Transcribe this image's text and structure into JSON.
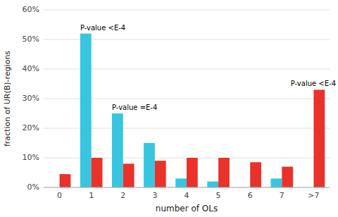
{
  "chart_data": {
    "type": "bar",
    "xlabel": "number of OLs",
    "ylabel": "fraction of UR(B)-regions",
    "categories": [
      "0",
      "1",
      "2",
      "3",
      "4",
      "5",
      "6",
      "7",
      ">7"
    ],
    "series": [
      {
        "color": "#39C5E0",
        "values": [
          0,
          52,
          25,
          15,
          3,
          2,
          0,
          3,
          0
        ],
        "annotations": [
          {
            "category": "1",
            "text": "P-value <E-4"
          },
          {
            "category": "2",
            "text": "P-value =E-4"
          }
        ]
      },
      {
        "color": "#E8322A",
        "values": [
          4.5,
          10,
          8,
          9,
          10,
          10,
          8.5,
          7,
          33
        ],
        "annotations": [
          {
            "category": ">7",
            "text": "P-value <E-4"
          }
        ]
      }
    ],
    "ylim": [
      0,
      60
    ],
    "yticks": [
      {
        "value": 0,
        "label": "0%"
      },
      {
        "value": 10,
        "label": "10%"
      },
      {
        "value": 20,
        "label": "20%"
      },
      {
        "value": 30,
        "label": "30%"
      },
      {
        "value": 40,
        "label": "40%"
      },
      {
        "value": 50,
        "label": "50%"
      },
      {
        "value": 60,
        "label": "60%"
      }
    ],
    "grid": true
  }
}
